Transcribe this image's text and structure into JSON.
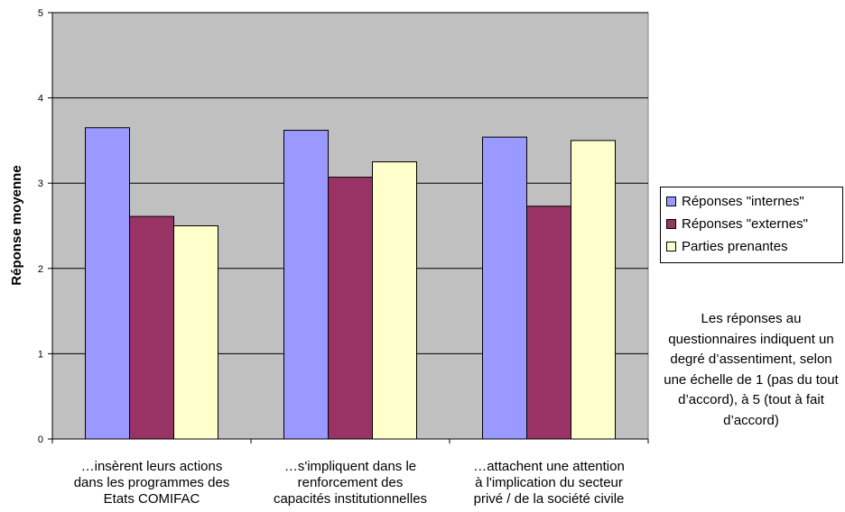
{
  "chart_data": {
    "type": "bar",
    "title": "",
    "xlabel": "",
    "ylabel": "Réponse moyenne",
    "ylim": [
      0,
      5
    ],
    "yticks": [
      "0",
      "1",
      "2",
      "3",
      "4",
      "5"
    ],
    "grid": true,
    "legend_position": "right",
    "categories": [
      [
        "…insèrent leurs actions",
        "dans les programmes des",
        "Etats COMIFAC"
      ],
      [
        "…s'impliquent dans le",
        "renforcement des",
        "capacités institutionnelles"
      ],
      [
        "…attachent une attention",
        "à l'implication du secteur",
        "privé / de la société civile"
      ]
    ],
    "series": [
      {
        "name": "Réponses \"internes\"",
        "color": "#9999ff",
        "values": [
          3.65,
          3.62,
          3.54
        ]
      },
      {
        "name": "Réponses \"externes\"",
        "color": "#993366",
        "values": [
          2.61,
          3.07,
          2.73
        ]
      },
      {
        "name": "Parties prenantes",
        "color": "#ffffcc",
        "values": [
          2.5,
          3.25,
          3.5
        ]
      }
    ]
  },
  "colors": {
    "plot_background": "#c0c0c0",
    "gridline": "#000000"
  },
  "note": "Les réponses au questionnaires indiquent un degré d’assentiment, selon une échelle de 1 (pas du tout d’accord), à 5 (tout à fait d’accord)"
}
